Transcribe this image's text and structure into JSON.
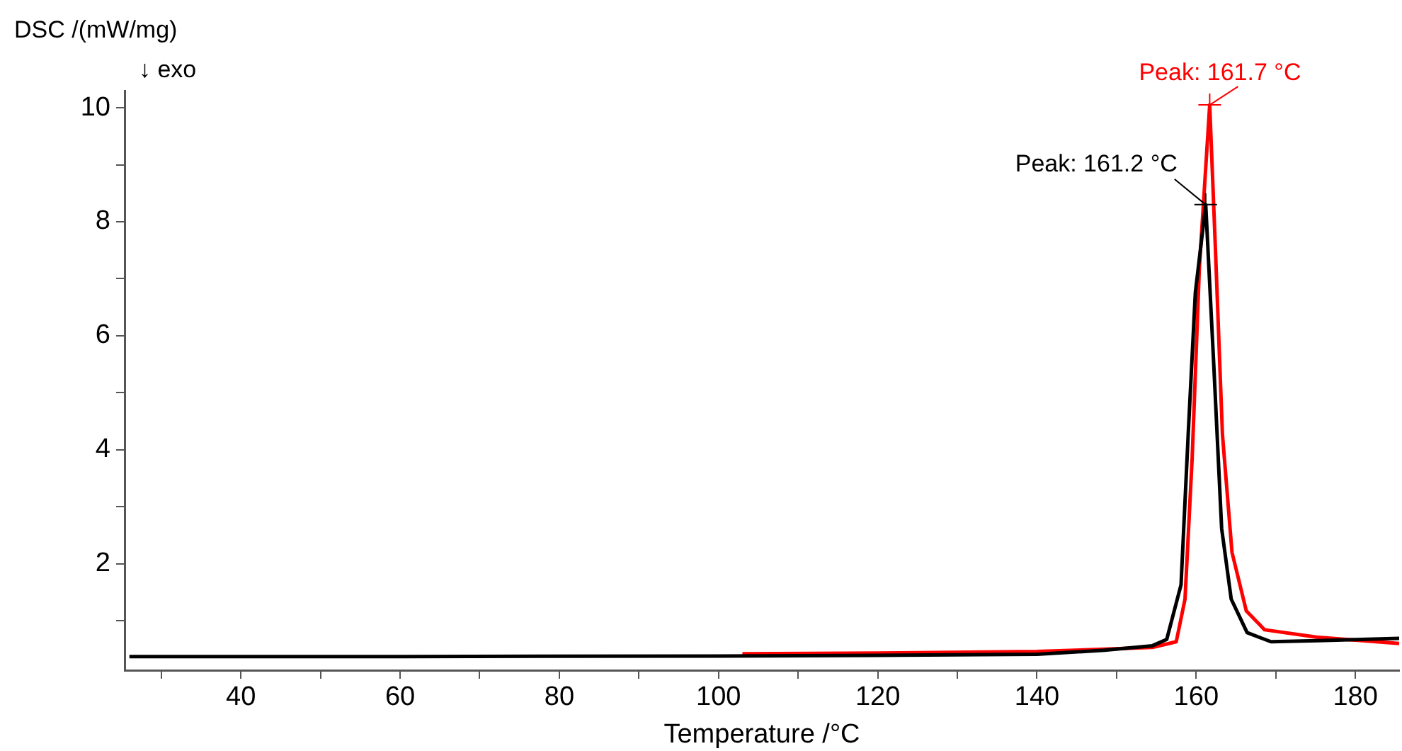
{
  "chart_data": {
    "type": "line",
    "xlabel": "Temperature /°C",
    "ylabel": "DSC /(mW/mg)",
    "xlim": [
      25.4,
      185.5
    ],
    "ylim": [
      0.13,
      10.3
    ],
    "xticks": [
      {
        "value": 30,
        "label": null
      },
      40,
      {
        "value": 50,
        "label": null
      },
      60,
      {
        "value": 70,
        "label": null
      },
      80,
      {
        "value": 90,
        "label": null
      },
      100,
      {
        "value": 110,
        "label": null
      },
      120,
      {
        "value": 130,
        "label": null
      },
      140,
      {
        "value": 150,
        "label": null
      },
      160,
      {
        "value": 170,
        "label": null
      },
      180
    ],
    "yticks": [
      {
        "value": 1,
        "label": null
      },
      2,
      {
        "value": 3,
        "label": null
      },
      4,
      {
        "value": 5,
        "label": null
      },
      6,
      {
        "value": 7,
        "label": null
      },
      8,
      {
        "value": 9,
        "label": null
      },
      10
    ],
    "grid": false,
    "legend": false,
    "series": [
      {
        "color": "#000000",
        "x": [
          26,
          60,
          100,
          120,
          140,
          148.5,
          154.5,
          156.3,
          158.1,
          159.0,
          159.9,
          161.2,
          162.2,
          163.2,
          164.4,
          166.4,
          169.4,
          175.3,
          185.5
        ],
        "values": [
          0.37,
          0.37,
          0.38,
          0.39,
          0.41,
          0.48,
          0.56,
          0.67,
          1.63,
          4.27,
          6.76,
          8.3,
          5.52,
          2.62,
          1.38,
          0.79,
          0.63,
          0.65,
          0.69
        ]
      },
      {
        "color": "#ff0000",
        "x": [
          103,
          120,
          140,
          148.5,
          154.5,
          157.5,
          158.6,
          159.5,
          160.4,
          161.7,
          162.4,
          163.3,
          164.5,
          166.3,
          168.6,
          175.1,
          185.5
        ],
        "values": [
          0.42,
          0.43,
          0.46,
          0.5,
          0.53,
          0.63,
          1.38,
          3.86,
          7.18,
          10.05,
          7.59,
          4.27,
          2.2,
          1.17,
          0.84,
          0.71,
          0.6
        ]
      }
    ],
    "annotations": [
      "↓ exo",
      {
        "text": "Peak: 161.2 °C",
        "x": 161.2,
        "y": 8.3
      },
      {
        "text": "Peak: 161.7 °C",
        "x": 161.7,
        "y": 10.05
      }
    ]
  }
}
